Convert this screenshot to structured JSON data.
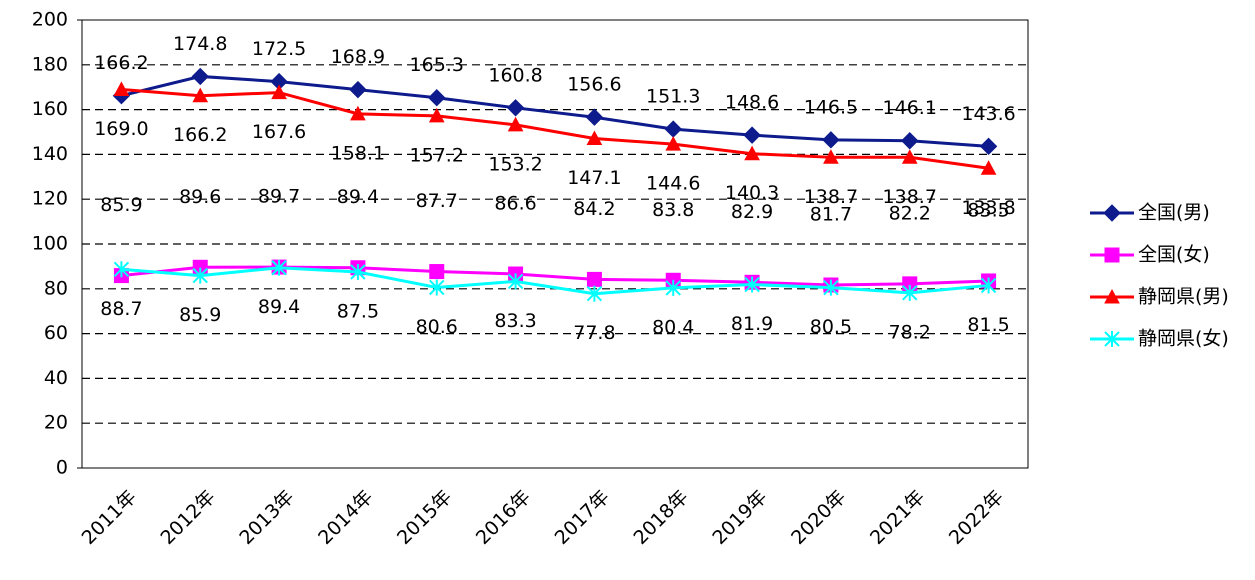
{
  "chart_data": {
    "type": "line",
    "categories": [
      "2011年",
      "2012年",
      "2013年",
      "2014年",
      "2015年",
      "2016年",
      "2017年",
      "2018年",
      "2019年",
      "2020年",
      "2021年",
      "2022年"
    ],
    "series": [
      {
        "name": "全国(男)",
        "color": "#0d1b8c",
        "marker": "diamond",
        "label_position": "above",
        "values": [
          166.2,
          174.8,
          172.5,
          168.9,
          165.3,
          160.8,
          156.6,
          151.3,
          148.6,
          146.5,
          146.1,
          143.6
        ],
        "value_labels": [
          "166.2",
          "174.8",
          "172.5",
          "168.9",
          "165.3",
          "160.8",
          "156.6",
          "151.3",
          "148.6",
          "146.5",
          "146.1",
          "143.6"
        ]
      },
      {
        "name": "全国(女)",
        "color": "#ff00ff",
        "marker": "square",
        "label_position": "high",
        "values": [
          85.9,
          89.6,
          89.7,
          89.4,
          87.7,
          86.6,
          84.2,
          83.8,
          82.9,
          81.7,
          82.2,
          83.5
        ],
        "value_labels": [
          "85.9",
          "89.6",
          "89.7",
          "89.4",
          "87.7",
          "86.6",
          "84.2",
          "83.8",
          "82.9",
          "81.7",
          "82.2",
          "83.5"
        ]
      },
      {
        "name": "静岡県(男)",
        "color": "#ff0000",
        "marker": "triangle",
        "label_position": "below",
        "values": [
          169.0,
          166.2,
          167.6,
          158.1,
          157.2,
          153.2,
          147.1,
          144.6,
          140.3,
          138.7,
          138.7,
          133.8
        ],
        "value_labels": [
          "169.0",
          "166.2",
          "167.6",
          "158.1",
          "157.2",
          "153.2",
          "147.1",
          "144.6",
          "140.3",
          "138.7",
          "138.7",
          "133.8"
        ]
      },
      {
        "name": "静岡県(女)",
        "color": "#00ffff",
        "marker": "cross",
        "label_position": "below",
        "values": [
          88.7,
          85.9,
          89.4,
          87.5,
          80.6,
          83.3,
          77.8,
          80.4,
          81.9,
          80.5,
          78.2,
          81.5
        ],
        "value_labels": [
          "88.7",
          "85.9",
          "89.4",
          "87.5",
          "80.6",
          "83.3",
          "77.8",
          "80.4",
          "81.9",
          "80.5",
          "78.2",
          "81.5"
        ]
      }
    ],
    "ylim": [
      0,
      200
    ],
    "yticks": [
      0,
      20,
      40,
      60,
      80,
      100,
      120,
      140,
      160,
      180,
      200
    ],
    "grid": true,
    "legend": "right"
  }
}
